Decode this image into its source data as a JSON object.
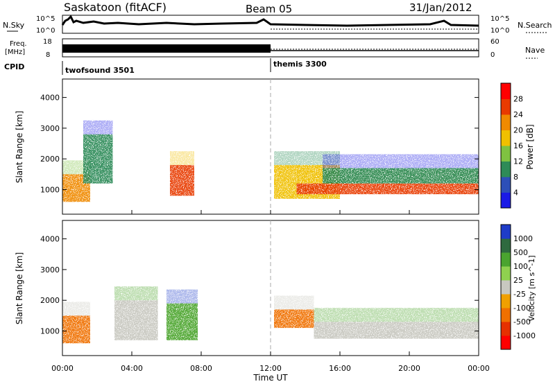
{
  "header": {
    "station": "Saskatoon (fitACF)",
    "beam": "Beam 05",
    "date": "31/Jan/2012"
  },
  "noise_panel": {
    "left_label": "N.Sky",
    "right_label": "N.Search",
    "ticks_left": [
      "10^5",
      "10^0"
    ],
    "ticks_right": [
      "10^5",
      "10^0"
    ]
  },
  "freq_panel": {
    "left_label_1": "Freq.",
    "left_label_2": "[MHz]",
    "right_label": "Nave",
    "ticks_left": [
      "18",
      "8"
    ],
    "ticks_right": [
      "60",
      "0"
    ]
  },
  "cpid_panel": {
    "label": "CPID",
    "segments": [
      {
        "name": "twofsound 3501",
        "start_hour": 0
      },
      {
        "name": "themis 3300",
        "start_hour": 12
      }
    ]
  },
  "chart_data": [
    {
      "type": "heatmap",
      "quantity": "power",
      "title": "",
      "xlabel": "",
      "ylabel": "Slant Range [km]",
      "xlim": [
        0,
        24
      ],
      "ylim": [
        200,
        4600
      ],
      "y_ticks": [
        "1000",
        "2000",
        "3000",
        "4000"
      ],
      "colorbar": {
        "label": "Power [dB]",
        "ticks": [
          "4",
          "8",
          "12",
          "16",
          "20",
          "24",
          "28"
        ],
        "colors": [
          "#1a1ae6",
          "#2d4fb8",
          "#2e8b57",
          "#7fc241",
          "#f0c000",
          "#f08a00",
          "#e83a00",
          "#ff0000"
        ]
      },
      "regions": [
        {
          "t0": 0.0,
          "t1": 1.6,
          "r0": 600,
          "r1": 1500,
          "level": 20
        },
        {
          "t0": 1.2,
          "t1": 2.9,
          "r0": 1200,
          "r1": 2800,
          "level": 8
        },
        {
          "t0": 6.2,
          "t1": 7.6,
          "r0": 800,
          "r1": 1800,
          "level": 24
        },
        {
          "t0": 12.2,
          "t1": 16.0,
          "r0": 700,
          "r1": 1800,
          "level": 16
        },
        {
          "t0": 13.5,
          "t1": 24.0,
          "r0": 850,
          "r1": 1200,
          "level": 24
        },
        {
          "t0": 15.0,
          "t1": 24.0,
          "r0": 1200,
          "r1": 1700,
          "level": 8
        }
      ]
    },
    {
      "type": "heatmap",
      "quantity": "velocity",
      "title": "",
      "xlabel": "Time UT",
      "ylabel": "Slant Range [km]",
      "xlim": [
        0,
        24
      ],
      "ylim": [
        200,
        4600
      ],
      "x_ticks": [
        "00:00",
        "04:00",
        "08:00",
        "12:00",
        "16:00",
        "20:00",
        "00:00"
      ],
      "y_ticks": [
        "1000",
        "2000",
        "3000",
        "4000"
      ],
      "colorbar": {
        "label": "Velocity [m s^-1]",
        "ticks": [
          "1000",
          "500",
          "100",
          "25",
          "-25",
          "-100",
          "-500",
          "-1000"
        ],
        "colors": [
          "#1e3cc8",
          "#2f6a3f",
          "#4aa42f",
          "#8fd14f",
          "#c8c8c0",
          "#f0a000",
          "#f07000",
          "#e63000",
          "#ff0000"
        ]
      },
      "regions": [
        {
          "t0": 0.0,
          "t1": 1.6,
          "r0": 600,
          "r1": 1500,
          "level": -100
        },
        {
          "t0": 3.0,
          "t1": 5.5,
          "r0": 700,
          "r1": 2000,
          "level": 0
        },
        {
          "t0": 6.0,
          "t1": 7.8,
          "r0": 700,
          "r1": 1900,
          "level": 100
        },
        {
          "t0": 12.2,
          "t1": 14.5,
          "r0": 1100,
          "r1": 1700,
          "level": -100
        },
        {
          "t0": 14.5,
          "t1": 24.0,
          "r0": 750,
          "r1": 1300,
          "level": 0
        }
      ]
    }
  ]
}
